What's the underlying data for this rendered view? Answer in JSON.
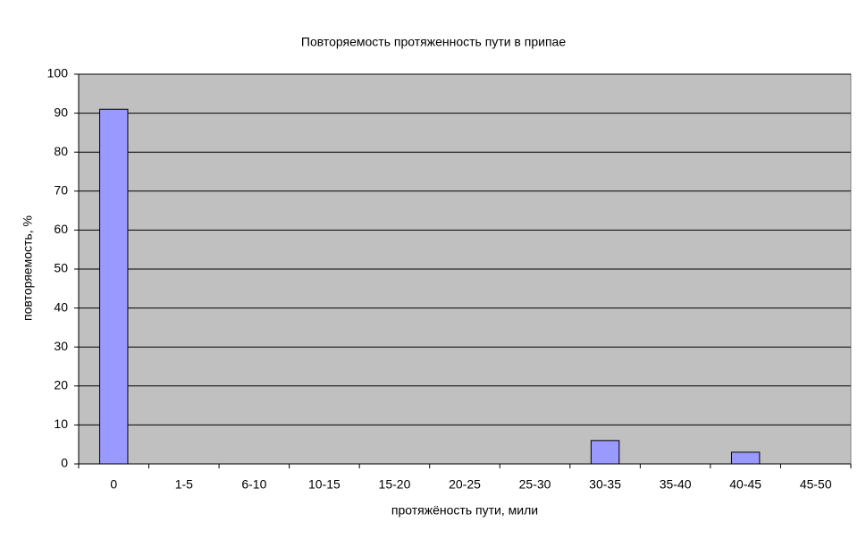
{
  "chart_data": {
    "type": "bar",
    "title": "Повторяемость протяженность пути в припае",
    "x_label": "протяжёность пути, мили",
    "y_label": "повторяемость, %",
    "categories": [
      "0",
      "1-5",
      "6-10",
      "10-15",
      "15-20",
      "20-25",
      "25-30",
      "30-35",
      "35-40",
      "40-45",
      "45-50"
    ],
    "values": [
      91,
      0,
      0,
      0,
      0,
      0,
      0,
      6,
      0,
      3,
      0
    ],
    "color": "#9999ff",
    "ylim": [
      0,
      100
    ],
    "yticks": [
      0,
      10,
      20,
      30,
      40,
      50,
      60,
      70,
      80,
      90,
      100
    ],
    "grid": true
  }
}
